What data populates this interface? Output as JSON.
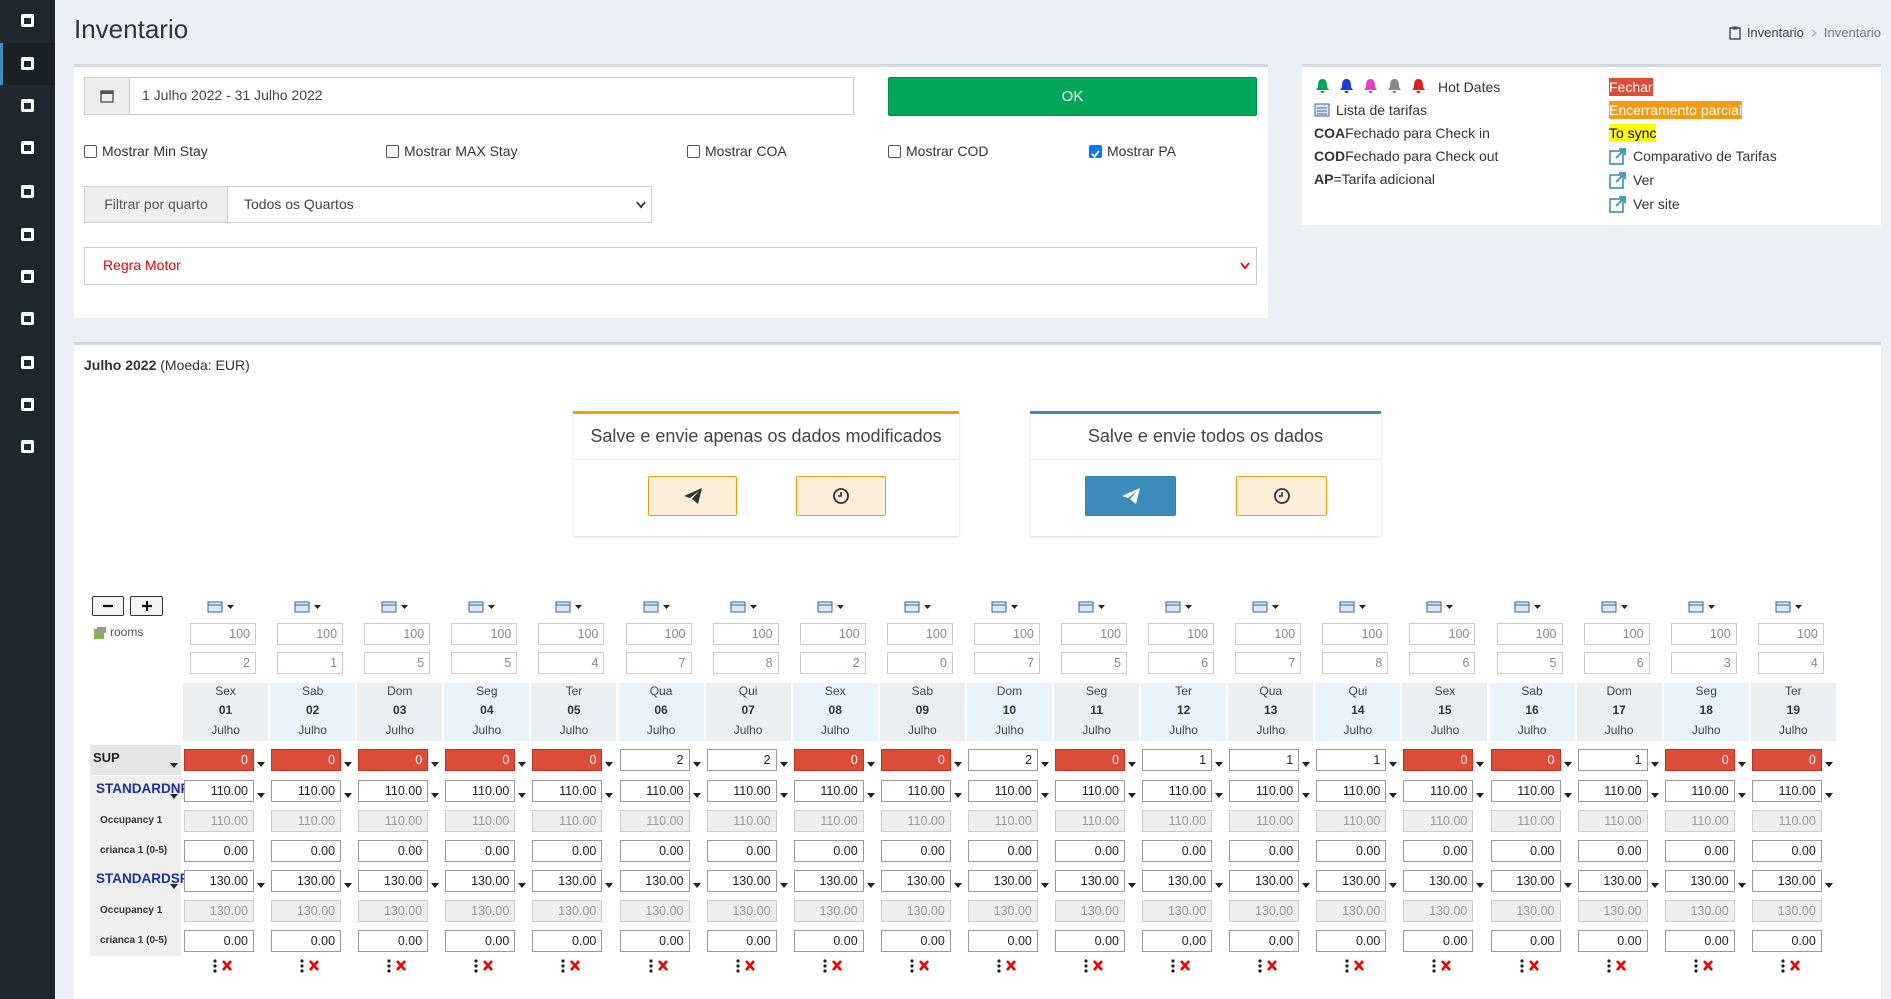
{
  "header": {
    "title": "Inventario",
    "breadcrumb": [
      "Inventario",
      "Inventario"
    ]
  },
  "filters": {
    "date_range": "1 Julho 2022 - 31 Julho 2022",
    "ok": "OK",
    "checkboxes": [
      {
        "label": "Mostrar Min Stay",
        "checked": false
      },
      {
        "label": "Mostrar MAX Stay",
        "checked": false
      },
      {
        "label": "Mostrar COA",
        "checked": false
      },
      {
        "label": "Mostrar COD",
        "checked": false
      },
      {
        "label": "Mostrar PA",
        "checked": true
      }
    ],
    "room_filter_label": "Filtrar por quarto",
    "room_filter_value": "Todos os Quartos",
    "rule": "Regra Motor"
  },
  "legend": {
    "hot_dates": "Hot Dates",
    "rate_list": "Lista de tarifas",
    "coa_code": "COA",
    "coa_text": "Fechado para Check in",
    "cod_code": "COD",
    "cod_text": "Fechado para Check out",
    "ap_code": "AP",
    "ap_text": "=Tarifa adicional",
    "closed": "Fechar",
    "partial": "Encerramento parcial",
    "to_sync": "To sync",
    "compare": "Comparativo de Tarifas",
    "view": "Ver",
    "view_site": "Ver site"
  },
  "grid": {
    "period": "Julho 2022",
    "currency": "(Moeda: EUR)",
    "save_modified": "Salve e envie apenas os dados modificados",
    "save_all": "Salve e envie todos os dados",
    "rooms_label": "rooms",
    "days": [
      {
        "weekday": "Sex",
        "day": "01",
        "month": "Julho"
      },
      {
        "weekday": "Sab",
        "day": "02",
        "month": "Julho"
      },
      {
        "weekday": "Dom",
        "day": "03",
        "month": "Julho"
      },
      {
        "weekday": "Seg",
        "day": "04",
        "month": "Julho"
      },
      {
        "weekday": "Ter",
        "day": "05",
        "month": "Julho"
      },
      {
        "weekday": "Qua",
        "day": "06",
        "month": "Julho"
      },
      {
        "weekday": "Qui",
        "day": "07",
        "month": "Julho"
      },
      {
        "weekday": "Sex",
        "day": "08",
        "month": "Julho"
      },
      {
        "weekday": "Sab",
        "day": "09",
        "month": "Julho"
      },
      {
        "weekday": "Dom",
        "day": "10",
        "month": "Julho"
      },
      {
        "weekday": "Seg",
        "day": "11",
        "month": "Julho"
      },
      {
        "weekday": "Ter",
        "day": "12",
        "month": "Julho"
      },
      {
        "weekday": "Qua",
        "day": "13",
        "month": "Julho"
      },
      {
        "weekday": "Qui",
        "day": "14",
        "month": "Julho"
      },
      {
        "weekday": "Sex",
        "day": "15",
        "month": "Julho"
      },
      {
        "weekday": "Sab",
        "day": "16",
        "month": "Julho"
      },
      {
        "weekday": "Dom",
        "day": "17",
        "month": "Julho"
      },
      {
        "weekday": "Seg",
        "day": "18",
        "month": "Julho"
      },
      {
        "weekday": "Ter",
        "day": "19",
        "month": "Julho"
      }
    ],
    "totals": [
      100,
      100,
      100,
      100,
      100,
      100,
      100,
      100,
      100,
      100,
      100,
      100,
      100,
      100,
      100,
      100,
      100,
      100,
      100
    ],
    "available": [
      2,
      1,
      5,
      5,
      4,
      7,
      8,
      2,
      0,
      7,
      5,
      6,
      7,
      8,
      6,
      5,
      6,
      3,
      4
    ],
    "rows": [
      {
        "label": "SUP",
        "kind": "availability",
        "values": [
          0,
          0,
          0,
          0,
          0,
          2,
          2,
          0,
          0,
          2,
          0,
          1,
          1,
          1,
          0,
          0,
          1,
          0,
          0
        ]
      },
      {
        "label": "STANDARDNR",
        "kind": "rate",
        "values": [
          "110.00",
          "110.00",
          "110.00",
          "110.00",
          "110.00",
          "110.00",
          "110.00",
          "110.00",
          "110.00",
          "110.00",
          "110.00",
          "110.00",
          "110.00",
          "110.00",
          "110.00",
          "110.00",
          "110.00",
          "110.00",
          "110.00"
        ]
      },
      {
        "label": "Occupancy 1",
        "kind": "occupancy",
        "values": [
          "110.00",
          "110.00",
          "110.00",
          "110.00",
          "110.00",
          "110.00",
          "110.00",
          "110.00",
          "110.00",
          "110.00",
          "110.00",
          "110.00",
          "110.00",
          "110.00",
          "110.00",
          "110.00",
          "110.00",
          "110.00",
          "110.00"
        ]
      },
      {
        "label": "crianca 1 (0-5)",
        "kind": "child",
        "values": [
          "0.00",
          "0.00",
          "0.00",
          "0.00",
          "0.00",
          "0.00",
          "0.00",
          "0.00",
          "0.00",
          "0.00",
          "0.00",
          "0.00",
          "0.00",
          "0.00",
          "0.00",
          "0.00",
          "0.00",
          "0.00",
          "0.00"
        ]
      },
      {
        "label": "STANDARDSR",
        "kind": "rate",
        "values": [
          "130.00",
          "130.00",
          "130.00",
          "130.00",
          "130.00",
          "130.00",
          "130.00",
          "130.00",
          "130.00",
          "130.00",
          "130.00",
          "130.00",
          "130.00",
          "130.00",
          "130.00",
          "130.00",
          "130.00",
          "130.00",
          "130.00"
        ]
      },
      {
        "label": "Occupancy 1",
        "kind": "occupancy",
        "values": [
          "130.00",
          "130.00",
          "130.00",
          "130.00",
          "130.00",
          "130.00",
          "130.00",
          "130.00",
          "130.00",
          "130.00",
          "130.00",
          "130.00",
          "130.00",
          "130.00",
          "130.00",
          "130.00",
          "130.00",
          "130.00",
          "130.00"
        ]
      },
      {
        "label": "crianca 1 (0-5)",
        "kind": "child",
        "values": [
          "0.00",
          "0.00",
          "0.00",
          "0.00",
          "0.00",
          "0.00",
          "0.00",
          "0.00",
          "0.00",
          "0.00",
          "0.00",
          "0.00",
          "0.00",
          "0.00",
          "0.00",
          "0.00",
          "0.00",
          "0.00",
          "0.00"
        ]
      }
    ]
  }
}
